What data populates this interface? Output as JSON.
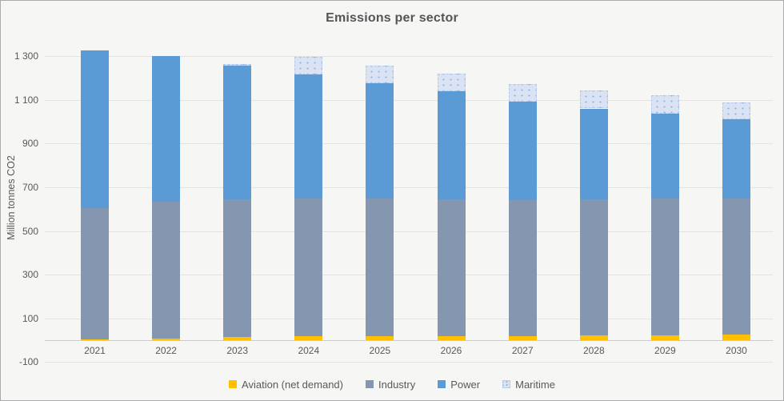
{
  "chart_data": {
    "type": "bar",
    "stacked": true,
    "title": "Emissions per sector",
    "ylabel": "Million tonnes CO2",
    "categories": [
      "2021",
      "2022",
      "2023",
      "2024",
      "2025",
      "2026",
      "2027",
      "2028",
      "2029",
      "2030"
    ],
    "series": [
      {
        "key": "aviation",
        "name": "Aviation (net demand)",
        "color": "#FFC000",
        "values": [
          4,
          8,
          13,
          17,
          17,
          18,
          19,
          21,
          22,
          25
        ]
      },
      {
        "key": "industry",
        "name": "Industry",
        "color": "#8496B0",
        "values": [
          600,
          624,
          633,
          632,
          632,
          627,
          623,
          625,
          626,
          624
        ]
      },
      {
        "key": "power",
        "name": "Power",
        "color": "#5B9BD5",
        "values": [
          723,
          668,
          613,
          567,
          528,
          495,
          449,
          414,
          388,
          362
        ]
      },
      {
        "key": "maritime",
        "name": "Maritime",
        "color": "#DAE3F3",
        "pattern": "dots",
        "values": [
          0,
          0,
          4,
          80,
          78,
          78,
          82,
          82,
          83,
          78
        ]
      }
    ],
    "totals": [
      1327,
      1300,
      1263,
      1296,
      1255,
      1218,
      1173,
      1142,
      1119,
      1089
    ],
    "ylim": [
      -100,
      1400
    ],
    "ytick_step": 200,
    "yticks": [
      [
        -100,
        "-100"
      ],
      [
        100,
        "100"
      ],
      [
        300,
        "300"
      ],
      [
        500,
        "500"
      ],
      [
        700,
        "700"
      ],
      [
        900,
        "900"
      ],
      [
        1100,
        "1 100"
      ],
      [
        1300,
        "1 300"
      ]
    ],
    "grid": true,
    "legend_position": "bottom"
  }
}
